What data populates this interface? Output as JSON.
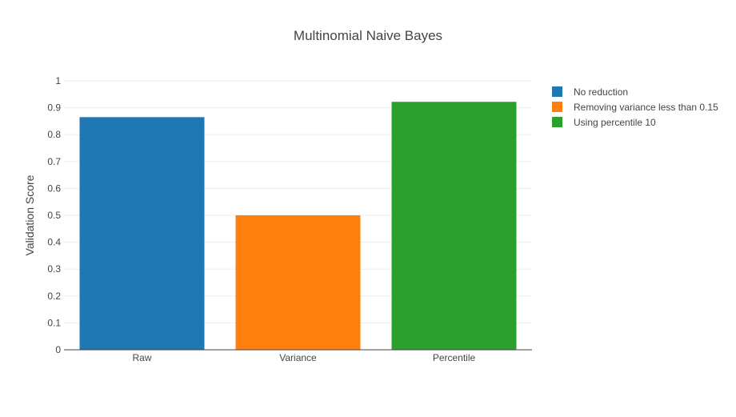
{
  "chart_data": {
    "type": "bar",
    "title": "Multinomial Naive Bayes",
    "xlabel": "",
    "ylabel": "Validation Score",
    "categories": [
      "Raw",
      "Variance",
      "Percentile"
    ],
    "series": [
      {
        "name": "No reduction",
        "category": "Raw",
        "value": 0.865,
        "color": "#1f77b4"
      },
      {
        "name": "Removing variance less than 0.15",
        "category": "Variance",
        "value": 0.5,
        "color": "#ff7f0e"
      },
      {
        "name": "Using percentile 10",
        "category": "Percentile",
        "value": 0.922,
        "color": "#2ca02c"
      }
    ],
    "ylim": [
      0,
      1
    ],
    "yticks": [
      "0",
      "0.1",
      "0.2",
      "0.3",
      "0.4",
      "0.5",
      "0.6",
      "0.7",
      "0.8",
      "0.9",
      "1"
    ],
    "grid": true,
    "legend_position": "top-right"
  }
}
